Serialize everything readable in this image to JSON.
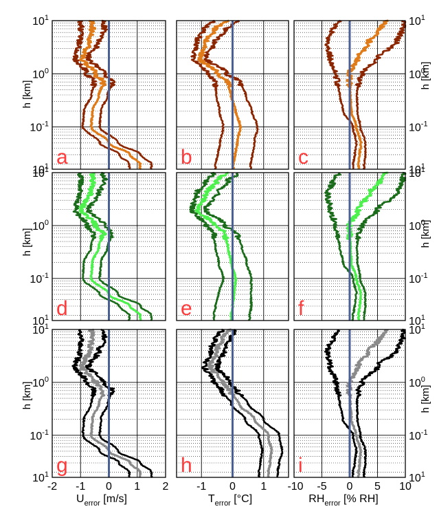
{
  "figure": {
    "ylabel_left": "h [km]",
    "ylabel_right": "h [km]",
    "xlabels": [
      {
        "main": "U",
        "sub": "error",
        "unit": " [m/s]"
      },
      {
        "main": "T",
        "sub": "error",
        "unit": " [°C]"
      },
      {
        "main": "RH",
        "sub": "error",
        "unit": " [% RH]"
      }
    ],
    "y_ticks": [
      {
        "base": "10",
        "exp": "-1"
      },
      {
        "base": "10",
        "exp": "0"
      },
      {
        "base": "10",
        "exp": "1"
      }
    ],
    "bottom_tick": {
      "base": "10",
      "exp": "1"
    },
    "x_ticks": [
      [
        "-2",
        "-1",
        "0",
        "1",
        "2"
      ],
      [
        "-1",
        "0",
        "1"
      ],
      [
        "-10",
        "-5",
        "0",
        "5",
        "10"
      ]
    ],
    "panel_letters": [
      "a",
      "b",
      "c",
      "d",
      "e",
      "f",
      "g",
      "h",
      "i"
    ]
  },
  "colors": {
    "row_schemes": [
      {
        "outer": "#8b2500",
        "inner": "#e07b1a"
      },
      {
        "outer": "#1a6b1a",
        "inner": "#4ef04e"
      },
      {
        "outer": "#000000",
        "inner": "#8a8a8a"
      }
    ],
    "zero_line": "#4a5f96",
    "letter": "#ff3b3b"
  },
  "chart_data": {
    "type": "line",
    "y_scale": "log",
    "ylim_km": [
      0.016,
      10
    ],
    "ylabel": "h [km]",
    "columns": [
      {
        "xlabel": "U_error [m/s]",
        "xlim": [
          -2,
          2
        ]
      },
      {
        "xlabel": "T_error [°C]",
        "xlim": [
          -1.8,
          1.8
        ]
      },
      {
        "xlabel": "RH_error [% RH]",
        "xlim": [
          -10,
          10
        ]
      }
    ],
    "h_km": [
      0.02,
      0.03,
      0.05,
      0.1,
      0.2,
      0.4,
      0.7,
      1.0,
      2.0,
      4.0,
      7.0,
      10.0
    ],
    "panels": [
      {
        "panel": "a",
        "row": 0,
        "col": 0,
        "outer_left": [
          0.72,
          0.36,
          -0.32,
          -0.92,
          -0.88,
          -0.62,
          -0.52,
          -0.78,
          -1.18,
          -1.02,
          -0.98,
          -1.0
        ],
        "mean": [
          1.1,
          0.75,
          0.0,
          -0.62,
          -0.58,
          -0.35,
          -0.2,
          -0.48,
          -0.95,
          -0.68,
          -0.58,
          -0.6
        ],
        "outer_right": [
          1.5,
          1.12,
          0.33,
          -0.32,
          -0.28,
          -0.04,
          0.12,
          -0.16,
          -0.72,
          -0.35,
          -0.15,
          -0.22
        ]
      },
      {
        "panel": "b",
        "row": 0,
        "col": 1,
        "outer_left": [
          -0.55,
          -0.48,
          -0.4,
          -0.3,
          -0.42,
          -0.52,
          -0.55,
          -0.8,
          -1.25,
          -1.15,
          -0.9,
          -0.6
        ],
        "mean": [
          0.02,
          0.08,
          0.15,
          0.25,
          0.1,
          -0.05,
          -0.15,
          -0.5,
          -1.05,
          -0.85,
          -0.55,
          -0.2
        ],
        "outer_right": [
          0.58,
          0.64,
          0.7,
          0.8,
          0.62,
          0.42,
          0.25,
          -0.18,
          -0.85,
          -0.55,
          -0.2,
          0.2
        ]
      },
      {
        "panel": "c",
        "row": 0,
        "col": 2,
        "outer_left": [
          0.6,
          0.9,
          1.2,
          0.6,
          -1.2,
          -1.8,
          -2.2,
          -2.5,
          -3.5,
          -4.0,
          -3.0,
          -2.0
        ],
        "mean": [
          1.6,
          1.8,
          2.0,
          1.2,
          0.3,
          0.1,
          0.0,
          0.0,
          1.5,
          3.5,
          5.5,
          6.5
        ],
        "outer_right": [
          2.6,
          2.8,
          2.8,
          1.9,
          1.4,
          1.3,
          1.6,
          2.2,
          5.0,
          8.5,
          9.5,
          9.8
        ]
      },
      {
        "panel": "d",
        "row": 1,
        "col": 0,
        "outer_left": [
          0.72,
          0.36,
          -0.32,
          -0.92,
          -0.88,
          -0.62,
          -0.52,
          -0.78,
          -1.18,
          -1.02,
          -0.98,
          -1.0
        ],
        "mean": [
          1.1,
          0.75,
          0.0,
          -0.62,
          -0.58,
          -0.35,
          -0.2,
          -0.48,
          -0.95,
          -0.68,
          -0.58,
          -0.6
        ],
        "outer_right": [
          1.5,
          1.12,
          0.33,
          -0.32,
          -0.28,
          -0.04,
          0.12,
          -0.16,
          -0.72,
          -0.35,
          -0.15,
          -0.22
        ]
      },
      {
        "panel": "e",
        "row": 1,
        "col": 1,
        "outer_left": [
          -0.6,
          -0.55,
          -0.45,
          -0.3,
          -0.45,
          -0.55,
          -0.6,
          -0.85,
          -1.3,
          -1.15,
          -0.85,
          -0.6
        ],
        "mean": [
          -0.05,
          0.0,
          0.05,
          0.1,
          -0.05,
          -0.15,
          -0.25,
          -0.55,
          -1.1,
          -0.85,
          -0.5,
          -0.2
        ],
        "outer_right": [
          0.55,
          0.6,
          0.6,
          0.6,
          0.45,
          0.3,
          0.15,
          -0.25,
          -0.85,
          -0.5,
          -0.15,
          0.2
        ]
      },
      {
        "panel": "f",
        "row": 1,
        "col": 2,
        "outer_left": [
          0.6,
          0.9,
          1.2,
          0.6,
          -1.2,
          -1.8,
          -2.2,
          -2.5,
          -3.5,
          -4.0,
          -3.0,
          -2.0
        ],
        "mean": [
          1.6,
          1.8,
          2.0,
          1.2,
          0.3,
          0.1,
          0.0,
          0.0,
          1.5,
          3.5,
          5.5,
          6.5
        ],
        "outer_right": [
          2.6,
          2.8,
          2.8,
          1.9,
          1.4,
          1.3,
          1.6,
          2.2,
          5.0,
          8.5,
          9.5,
          9.8
        ]
      },
      {
        "panel": "g",
        "row": 2,
        "col": 0,
        "outer_left": [
          0.72,
          0.36,
          -0.32,
          -0.92,
          -0.88,
          -0.62,
          -0.52,
          -0.78,
          -1.18,
          -1.02,
          -0.98,
          -1.0
        ],
        "mean": [
          1.1,
          0.75,
          0.0,
          -0.62,
          -0.58,
          -0.35,
          -0.2,
          -0.48,
          -0.95,
          -0.68,
          -0.58,
          -0.6
        ],
        "outer_right": [
          1.5,
          1.12,
          0.33,
          -0.32,
          -0.28,
          -0.04,
          0.12,
          -0.16,
          -0.72,
          -0.35,
          -0.15,
          -0.22
        ]
      },
      {
        "panel": "h",
        "row": 2,
        "col": 1,
        "outer_left": [
          0.85,
          0.9,
          0.95,
          0.85,
          0.4,
          -0.05,
          -0.35,
          -0.6,
          -0.9,
          -0.7,
          -0.55,
          -0.35
        ],
        "mean": [
          1.15,
          1.2,
          1.25,
          1.15,
          0.7,
          0.2,
          -0.1,
          -0.35,
          -0.7,
          -0.5,
          -0.3,
          -0.1
        ],
        "outer_right": [
          1.45,
          1.5,
          1.6,
          1.5,
          1.0,
          0.5,
          0.15,
          -0.1,
          -0.5,
          -0.25,
          -0.05,
          0.15
        ]
      },
      {
        "panel": "i",
        "row": 2,
        "col": 2,
        "outer_left": [
          0.6,
          0.9,
          1.2,
          0.6,
          -1.2,
          -1.8,
          -2.2,
          -2.5,
          -3.5,
          -4.0,
          -3.0,
          -2.0
        ],
        "mean": [
          1.6,
          1.8,
          2.0,
          1.2,
          0.3,
          0.1,
          0.0,
          0.0,
          1.5,
          3.5,
          5.5,
          6.5
        ],
        "outer_right": [
          2.6,
          2.8,
          2.8,
          1.9,
          1.4,
          1.3,
          1.6,
          2.2,
          5.0,
          8.5,
          9.5,
          9.8
        ]
      }
    ]
  }
}
